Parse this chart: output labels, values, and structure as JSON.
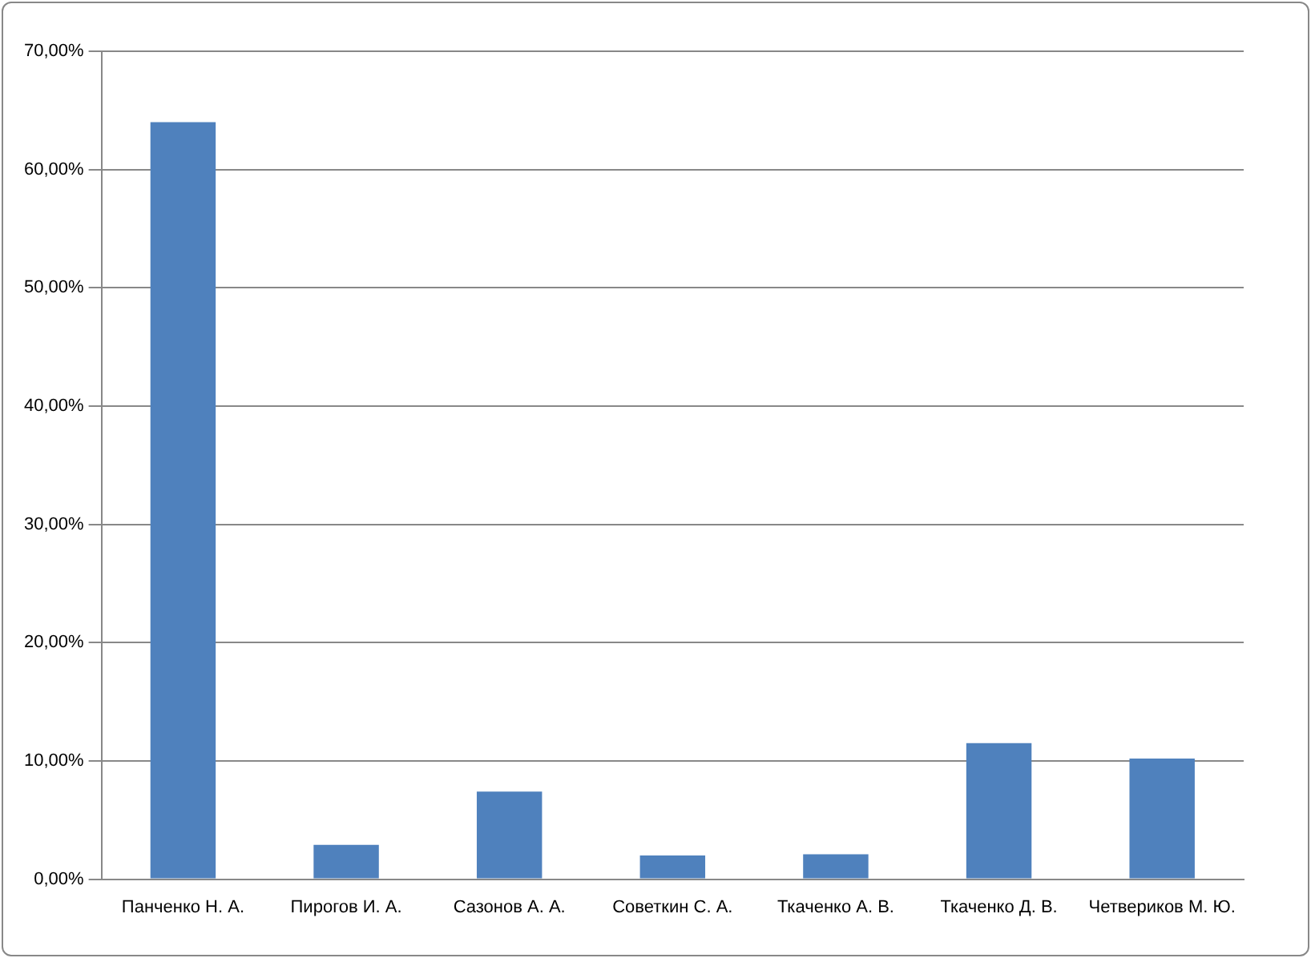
{
  "chart_data": {
    "type": "bar",
    "categories": [
      "Панченко Н. А.",
      "Пирогов И. А.",
      "Сазонов А. А.",
      "Советкин С. А.",
      "Ткаченко А. В.",
      "Ткаченко Д. В.",
      "Четвериков М. Ю."
    ],
    "values": [
      64.0,
      2.9,
      7.4,
      2.0,
      2.1,
      11.5,
      10.2
    ],
    "color": "#4f81bd",
    "ylim": [
      0,
      70
    ],
    "yticks": [
      {
        "value": 0,
        "label": "0,00%"
      },
      {
        "value": 10,
        "label": "10,00%"
      },
      {
        "value": 20,
        "label": "20,00%"
      },
      {
        "value": 30,
        "label": "30,00%"
      },
      {
        "value": 40,
        "label": "40,00%"
      },
      {
        "value": 50,
        "label": "50,00%"
      },
      {
        "value": 60,
        "label": "60,00%"
      },
      {
        "value": 70,
        "label": "70,00%"
      }
    ],
    "grid": "y",
    "legend": false
  }
}
